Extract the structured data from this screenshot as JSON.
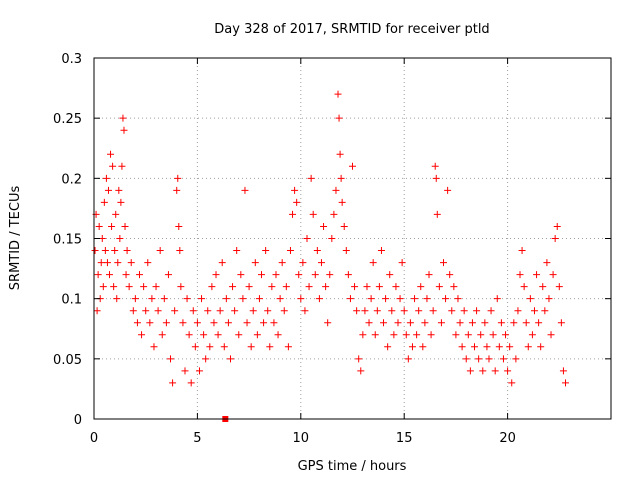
{
  "chart_data": {
    "type": "scatter",
    "title": "Day 328 of 2017, SRMTID for receiver ptld",
    "xlabel": "GPS time / hours",
    "ylabel": "SRMTID / TECUs",
    "xlim": [
      0,
      25
    ],
    "ylim": [
      0,
      0.3
    ],
    "x_ticks": [
      0,
      5,
      10,
      15,
      20
    ],
    "x_tick_labels": [
      "0",
      "5",
      "10",
      "15",
      "20"
    ],
    "y_ticks": [
      0,
      0.05,
      0.1,
      0.15,
      0.2,
      0.25,
      0.3
    ],
    "y_tick_labels": [
      "0",
      "0.05",
      "0.1",
      "0.15",
      "0.2",
      "0.25",
      "0.3"
    ],
    "grid": true,
    "marker": "+",
    "color": "#ff0000",
    "series": [
      {
        "points": [
          [
            0.05,
            0.14
          ],
          [
            0.1,
            0.17
          ],
          [
            0.15,
            0.09
          ],
          [
            0.2,
            0.12
          ],
          [
            0.25,
            0.16
          ],
          [
            0.3,
            0.1
          ],
          [
            0.35,
            0.13
          ],
          [
            0.4,
            0.15
          ],
          [
            0.45,
            0.11
          ],
          [
            0.5,
            0.18
          ],
          [
            0.55,
            0.14
          ],
          [
            0.6,
            0.2
          ],
          [
            0.65,
            0.13
          ],
          [
            0.7,
            0.19
          ],
          [
            0.75,
            0.12
          ],
          [
            0.8,
            0.22
          ],
          [
            0.85,
            0.16
          ],
          [
            0.9,
            0.21
          ],
          [
            0.95,
            0.11
          ],
          [
            1.0,
            0.14
          ],
          [
            1.05,
            0.17
          ],
          [
            1.1,
            0.1
          ],
          [
            1.15,
            0.13
          ],
          [
            1.2,
            0.19
          ],
          [
            1.25,
            0.15
          ],
          [
            1.3,
            0.18
          ],
          [
            1.35,
            0.21
          ],
          [
            1.4,
            0.25
          ],
          [
            1.45,
            0.24
          ],
          [
            1.5,
            0.16
          ],
          [
            1.55,
            0.12
          ],
          [
            1.6,
            0.14
          ],
          [
            1.7,
            0.11
          ],
          [
            1.8,
            0.13
          ],
          [
            1.9,
            0.09
          ],
          [
            2.0,
            0.1
          ],
          [
            2.1,
            0.08
          ],
          [
            2.2,
            0.12
          ],
          [
            2.3,
            0.07
          ],
          [
            2.4,
            0.11
          ],
          [
            2.5,
            0.09
          ],
          [
            2.6,
            0.13
          ],
          [
            2.7,
            0.08
          ],
          [
            2.8,
            0.1
          ],
          [
            2.9,
            0.06
          ],
          [
            3.0,
            0.11
          ],
          [
            3.1,
            0.09
          ],
          [
            3.2,
            0.14
          ],
          [
            3.3,
            0.07
          ],
          [
            3.4,
            0.1
          ],
          [
            3.5,
            0.08
          ],
          [
            3.6,
            0.12
          ],
          [
            3.7,
            0.05
          ],
          [
            3.8,
            0.03
          ],
          [
            3.9,
            0.09
          ],
          [
            4.0,
            0.19
          ],
          [
            4.05,
            0.2
          ],
          [
            4.1,
            0.16
          ],
          [
            4.15,
            0.14
          ],
          [
            4.2,
            0.11
          ],
          [
            4.3,
            0.08
          ],
          [
            4.4,
            0.04
          ],
          [
            4.5,
            0.1
          ],
          [
            4.6,
            0.07
          ],
          [
            4.7,
            0.03
          ],
          [
            4.8,
            0.09
          ],
          [
            4.9,
            0.06
          ],
          [
            5.0,
            0.08
          ],
          [
            5.1,
            0.04
          ],
          [
            5.2,
            0.1
          ],
          [
            5.3,
            0.07
          ],
          [
            5.4,
            0.05
          ],
          [
            5.5,
            0.09
          ],
          [
            5.6,
            0.06
          ],
          [
            5.7,
            0.11
          ],
          [
            5.8,
            0.08
          ],
          [
            5.9,
            0.12
          ],
          [
            6.0,
            0.07
          ],
          [
            6.1,
            0.09
          ],
          [
            6.2,
            0.13
          ],
          [
            6.3,
            0.06
          ],
          [
            6.4,
            0.1
          ],
          [
            6.5,
            0.08
          ],
          [
            6.6,
            0.05
          ],
          [
            6.7,
            0.11
          ],
          [
            6.8,
            0.09
          ],
          [
            6.9,
            0.14
          ],
          [
            7.0,
            0.07
          ],
          [
            7.1,
            0.12
          ],
          [
            7.2,
            0.1
          ],
          [
            7.3,
            0.19
          ],
          [
            7.4,
            0.08
          ],
          [
            7.5,
            0.11
          ],
          [
            7.6,
            0.06
          ],
          [
            7.7,
            0.09
          ],
          [
            7.8,
            0.13
          ],
          [
            7.9,
            0.07
          ],
          [
            8.0,
            0.1
          ],
          [
            8.1,
            0.12
          ],
          [
            8.2,
            0.08
          ],
          [
            8.3,
            0.14
          ],
          [
            8.4,
            0.09
          ],
          [
            8.5,
            0.06
          ],
          [
            8.6,
            0.11
          ],
          [
            8.7,
            0.08
          ],
          [
            8.8,
            0.12
          ],
          [
            8.9,
            0.07
          ],
          [
            9.0,
            0.1
          ],
          [
            9.1,
            0.13
          ],
          [
            9.2,
            0.09
          ],
          [
            9.3,
            0.11
          ],
          [
            9.4,
            0.06
          ],
          [
            9.5,
            0.14
          ],
          [
            9.6,
            0.17
          ],
          [
            9.7,
            0.19
          ],
          [
            9.8,
            0.18
          ],
          [
            9.9,
            0.12
          ],
          [
            10.0,
            0.1
          ],
          [
            10.1,
            0.13
          ],
          [
            10.2,
            0.09
          ],
          [
            10.3,
            0.15
          ],
          [
            10.4,
            0.11
          ],
          [
            10.5,
            0.2
          ],
          [
            10.6,
            0.17
          ],
          [
            10.7,
            0.12
          ],
          [
            10.8,
            0.14
          ],
          [
            10.9,
            0.1
          ],
          [
            11.0,
            0.13
          ],
          [
            11.1,
            0.16
          ],
          [
            11.2,
            0.11
          ],
          [
            11.3,
            0.08
          ],
          [
            11.4,
            0.12
          ],
          [
            11.5,
            0.15
          ],
          [
            11.6,
            0.17
          ],
          [
            11.7,
            0.19
          ],
          [
            11.8,
            0.27
          ],
          [
            11.85,
            0.25
          ],
          [
            11.9,
            0.22
          ],
          [
            11.95,
            0.2
          ],
          [
            12.0,
            0.18
          ],
          [
            12.1,
            0.16
          ],
          [
            12.2,
            0.14
          ],
          [
            12.3,
            0.12
          ],
          [
            12.4,
            0.1
          ],
          [
            12.5,
            0.21
          ],
          [
            12.6,
            0.11
          ],
          [
            12.7,
            0.09
          ],
          [
            12.8,
            0.05
          ],
          [
            12.9,
            0.04
          ],
          [
            13.0,
            0.07
          ],
          [
            13.1,
            0.09
          ],
          [
            13.2,
            0.11
          ],
          [
            13.3,
            0.08
          ],
          [
            13.4,
            0.1
          ],
          [
            13.5,
            0.13
          ],
          [
            13.6,
            0.07
          ],
          [
            13.7,
            0.09
          ],
          [
            13.8,
            0.11
          ],
          [
            13.9,
            0.14
          ],
          [
            14.0,
            0.08
          ],
          [
            14.1,
            0.1
          ],
          [
            14.2,
            0.06
          ],
          [
            14.3,
            0.12
          ],
          [
            14.4,
            0.09
          ],
          [
            14.5,
            0.07
          ],
          [
            14.6,
            0.11
          ],
          [
            14.7,
            0.08
          ],
          [
            14.8,
            0.1
          ],
          [
            14.9,
            0.13
          ],
          [
            15.0,
            0.09
          ],
          [
            15.1,
            0.07
          ],
          [
            15.2,
            0.05
          ],
          [
            15.3,
            0.08
          ],
          [
            15.4,
            0.06
          ],
          [
            15.5,
            0.1
          ],
          [
            15.6,
            0.07
          ],
          [
            15.7,
            0.09
          ],
          [
            15.8,
            0.11
          ],
          [
            15.9,
            0.06
          ],
          [
            16.0,
            0.08
          ],
          [
            16.1,
            0.1
          ],
          [
            16.2,
            0.12
          ],
          [
            16.3,
            0.07
          ],
          [
            16.4,
            0.09
          ],
          [
            16.5,
            0.21
          ],
          [
            16.55,
            0.2
          ],
          [
            16.6,
            0.17
          ],
          [
            16.7,
            0.11
          ],
          [
            16.8,
            0.08
          ],
          [
            16.9,
            0.13
          ],
          [
            17.0,
            0.1
          ],
          [
            17.1,
            0.19
          ],
          [
            17.2,
            0.12
          ],
          [
            17.3,
            0.09
          ],
          [
            17.4,
            0.11
          ],
          [
            17.5,
            0.07
          ],
          [
            17.6,
            0.1
          ],
          [
            17.7,
            0.08
          ],
          [
            17.8,
            0.06
          ],
          [
            17.9,
            0.09
          ],
          [
            18.0,
            0.05
          ],
          [
            18.1,
            0.07
          ],
          [
            18.2,
            0.04
          ],
          [
            18.3,
            0.08
          ],
          [
            18.4,
            0.06
          ],
          [
            18.5,
            0.09
          ],
          [
            18.6,
            0.05
          ],
          [
            18.7,
            0.07
          ],
          [
            18.8,
            0.04
          ],
          [
            18.9,
            0.08
          ],
          [
            19.0,
            0.06
          ],
          [
            19.1,
            0.05
          ],
          [
            19.2,
            0.09
          ],
          [
            19.3,
            0.07
          ],
          [
            19.4,
            0.04
          ],
          [
            19.5,
            0.1
          ],
          [
            19.6,
            0.06
          ],
          [
            19.7,
            0.08
          ],
          [
            19.8,
            0.05
          ],
          [
            19.9,
            0.07
          ],
          [
            20.0,
            0.04
          ],
          [
            20.1,
            0.06
          ],
          [
            20.2,
            0.03
          ],
          [
            20.3,
            0.08
          ],
          [
            20.4,
            0.05
          ],
          [
            20.5,
            0.09
          ],
          [
            20.6,
            0.12
          ],
          [
            20.7,
            0.14
          ],
          [
            20.8,
            0.11
          ],
          [
            20.9,
            0.08
          ],
          [
            21.0,
            0.06
          ],
          [
            21.1,
            0.1
          ],
          [
            21.2,
            0.07
          ],
          [
            21.3,
            0.09
          ],
          [
            21.4,
            0.12
          ],
          [
            21.5,
            0.08
          ],
          [
            21.6,
            0.06
          ],
          [
            21.7,
            0.11
          ],
          [
            21.8,
            0.09
          ],
          [
            21.9,
            0.13
          ],
          [
            22.0,
            0.1
          ],
          [
            22.1,
            0.07
          ],
          [
            22.2,
            0.12
          ],
          [
            22.3,
            0.15
          ],
          [
            22.4,
            0.16
          ],
          [
            22.5,
            0.11
          ],
          [
            22.6,
            0.08
          ],
          [
            22.7,
            0.04
          ],
          [
            22.8,
            0.03
          ]
        ]
      }
    ],
    "outlier_markers": [
      {
        "x": 6.35,
        "y": 0.0
      }
    ]
  }
}
